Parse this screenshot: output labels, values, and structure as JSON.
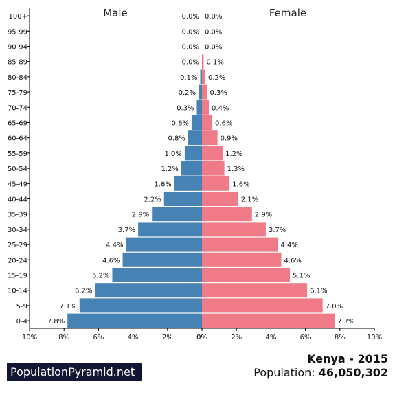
{
  "chart_data": {
    "type": "bar",
    "orientation": "horizontal-pyramid",
    "categories": [
      "100+",
      "95-99",
      "90-94",
      "85-89",
      "80-84",
      "75-79",
      "70-74",
      "65-69",
      "60-64",
      "55-59",
      "50-54",
      "45-49",
      "40-44",
      "35-39",
      "30-34",
      "25-29",
      "20-24",
      "15-19",
      "10-14",
      "5-9",
      "0-4"
    ],
    "series": [
      {
        "name": "Male",
        "color": "#4682b4",
        "values": [
          0.0,
          0.0,
          0.0,
          0.0,
          0.1,
          0.2,
          0.3,
          0.6,
          0.8,
          1.0,
          1.2,
          1.6,
          2.2,
          2.9,
          3.7,
          4.4,
          4.6,
          5.2,
          6.2,
          7.1,
          7.8
        ],
        "labels": [
          "0.0%",
          "0.0%",
          "0.0%",
          "0.0%",
          "0.1%",
          "0.2%",
          "0.3%",
          "0.6%",
          "0.8%",
          "1.0%",
          "1.2%",
          "1.6%",
          "2.2%",
          "2.9%",
          "3.7%",
          "4.4%",
          "4.6%",
          "5.2%",
          "6.2%",
          "7.1%",
          "7.8%"
        ]
      },
      {
        "name": "Female",
        "color": "#f07b88",
        "values": [
          0.0,
          0.0,
          0.0,
          0.1,
          0.2,
          0.3,
          0.4,
          0.6,
          0.9,
          1.2,
          1.3,
          1.6,
          2.1,
          2.9,
          3.7,
          4.4,
          4.6,
          5.1,
          6.1,
          7.0,
          7.7
        ],
        "labels": [
          "0.0%",
          "0.0%",
          "0.0%",
          "0.1%",
          "0.2%",
          "0.3%",
          "0.4%",
          "0.6%",
          "0.9%",
          "1.2%",
          "1.3%",
          "1.6%",
          "2.1%",
          "2.9%",
          "3.7%",
          "4.4%",
          "4.6%",
          "5.1%",
          "6.1%",
          "7.0%",
          "7.7%"
        ]
      }
    ],
    "xlim": [
      0,
      10
    ],
    "xticks_left": [
      "10%",
      "8%",
      "6%",
      "4%",
      "2%",
      "0%"
    ],
    "xticks_right": [
      "0%",
      "2%",
      "4%",
      "6%",
      "8%",
      "10%"
    ],
    "grid": false,
    "legend": "none"
  },
  "footer": {
    "brand": "PopulationPyramid.net",
    "country": "Kenya - 2015",
    "population_label": "Population:",
    "population_value": "46,050,302"
  }
}
